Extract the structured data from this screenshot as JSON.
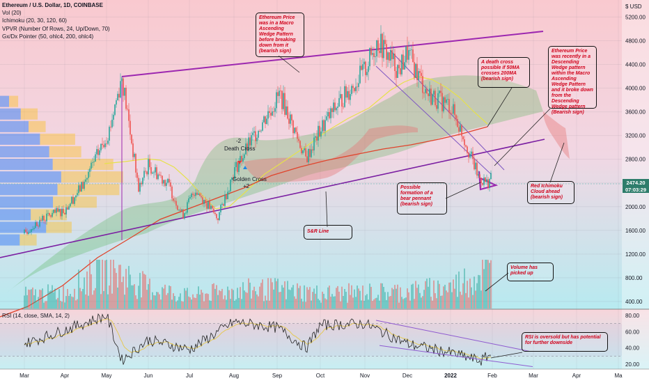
{
  "legend": {
    "title": "Ethereum / U.S. Dollar, 1D, COINBASE",
    "indicators": [
      "Vol (20)",
      "Ichimoku (20, 30, 120, 60)",
      "VPVR (Number Of Rows, 24, Up/Down, 70)",
      "Gx/Dx Pointer (50, ohlc4, 200, ohlc4)"
    ]
  },
  "rsi_legend": "RSI (14, close, SMA, 14, 2)",
  "currency_label": "$ USD",
  "last_price": {
    "value": "2474.20",
    "countdown": "07:03:29"
  },
  "chart_labels": {
    "death_cross": "Death Cross",
    "golden_cross": "Golden Cross",
    "death_cross_num": "-2",
    "golden_cross_num": "+2"
  },
  "annotations": {
    "wedge": "Ethereum Price was in a Macro Ascending Wedge Pattern before breaking down from it (bearish sign)",
    "death_cross_possible": "A death cross possible if 50MA crosses 200MA (bearish sign)",
    "descending_wedge": "Ethereum Price was recently in a Descending Wedge pattern within the Macro Ascending Wedge Pattern and it broke down from the Descending Wedge pattern (Bearish sign)",
    "bear_pennant": "Possible formation of a bear pennant (bearish sign)",
    "red_cloud": "Red Ichimoku Cloud ahead (bearish sign)",
    "sr_line": "S&R Line",
    "volume": "Volume has picked up",
    "rsi": "RSI is oversold but has potential for further downside"
  },
  "chart_data": [
    {
      "type": "candlestick",
      "title": "Ethereum / U.S. Dollar, 1D, COINBASE",
      "x_tick_labels": [
        "Mar",
        "Apr",
        "May",
        "Jun",
        "Jul",
        "Aug",
        "Sep",
        "Oct",
        "Nov",
        "Dec",
        "2022",
        "Feb",
        "Mar",
        "Apr",
        "Ma"
      ],
      "y_tick_labels": [
        400,
        800,
        1200,
        1600,
        2000,
        2400,
        2800,
        3200,
        3600,
        4000,
        4400,
        4800,
        5200
      ],
      "ylim": [
        270,
        5440
      ],
      "series": [
        {
          "name": "ETHUSD close (approx.)",
          "points": [
            [
              "Mar-01",
              1550
            ],
            [
              "Mar-15",
              1800
            ],
            [
              "Apr-01",
              1950
            ],
            [
              "Apr-15",
              2400
            ],
            [
              "May-03",
              3300
            ],
            [
              "May-12",
              4200
            ],
            [
              "May-24",
              2300
            ],
            [
              "Jun-01",
              2700
            ],
            [
              "Jun-15",
              2400
            ],
            [
              "Jun-26",
              1850
            ],
            [
              "Jul-05",
              2300
            ],
            [
              "Jul-20",
              1800
            ],
            [
              "Aug-01",
              2600
            ],
            [
              "Aug-15",
              3200
            ],
            [
              "Sep-03",
              3900
            ],
            [
              "Sep-21",
              2800
            ],
            [
              "Oct-01",
              3300
            ],
            [
              "Oct-15",
              3800
            ],
            [
              "Nov-01",
              4300
            ],
            [
              "Nov-10",
              4800
            ],
            [
              "Nov-25",
              4300
            ],
            [
              "Dec-01",
              4600
            ],
            [
              "Dec-15",
              3900
            ],
            [
              "Jan-01",
              3700
            ],
            [
              "Jan-10",
              3200
            ],
            [
              "Jan-21",
              2500
            ],
            [
              "Jan-27",
              2400
            ],
            [
              "Jan-30",
              2474
            ]
          ]
        },
        {
          "name": "Volume (approx.)",
          "points": [
            [
              "Mar",
              60
            ],
            [
              "Apr",
              70
            ],
            [
              "May",
              180
            ],
            [
              "Jun",
              90
            ],
            [
              "Jul",
              55
            ],
            [
              "Aug",
              80
            ],
            [
              "Sep",
              85
            ],
            [
              "Oct",
              65
            ],
            [
              "Nov",
              70
            ],
            [
              "Dec",
              75
            ],
            [
              "Jan",
              95
            ],
            [
              "late Jan",
              160
            ]
          ]
        }
      ]
    },
    {
      "type": "line",
      "title": "RSI (14, close, SMA, 14, 2)",
      "y_tick_labels": [
        20,
        40,
        60,
        80
      ],
      "ylim": [
        14,
        86
      ],
      "series": [
        {
          "name": "RSI (approx.)",
          "points": [
            [
              "Mar",
              45
            ],
            [
              "Apr",
              62
            ],
            [
              "May",
              80
            ],
            [
              "late May",
              25
            ],
            [
              "Jun",
              50
            ],
            [
              "Jul",
              38
            ],
            [
              "Aug",
              72
            ],
            [
              "Sep",
              65
            ],
            [
              "late Sep",
              40
            ],
            [
              "Oct",
              68
            ],
            [
              "Nov",
              70
            ],
            [
              "Dec",
              45
            ],
            [
              "Jan",
              34
            ],
            [
              "late Jan",
              24
            ],
            [
              "end Jan",
              32
            ]
          ]
        }
      ]
    }
  ]
}
